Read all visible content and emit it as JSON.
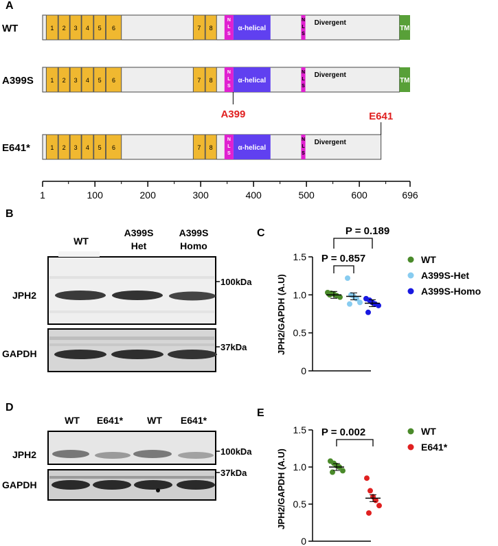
{
  "panel_a": {
    "letter": "A",
    "rows": [
      {
        "label": "WT",
        "length": 696,
        "has_tm": true,
        "annotation": ""
      },
      {
        "label": "A399S",
        "length": 696,
        "has_tm": true,
        "annotation": "A399",
        "annotation_pos": 399
      },
      {
        "label": "E641*",
        "length": 641,
        "has_tm": false,
        "annotation": "E641",
        "annotation_pos": 641
      }
    ],
    "domains": {
      "morn": [
        {
          "label": "1",
          "start": 8,
          "end": 30
        },
        {
          "label": "2",
          "start": 31,
          "end": 52
        },
        {
          "label": "3",
          "start": 53,
          "end": 74
        },
        {
          "label": "4",
          "start": 75,
          "end": 97
        },
        {
          "label": "5",
          "start": 98,
          "end": 120
        },
        {
          "label": "6",
          "start": 121,
          "end": 150
        },
        {
          "label": "7",
          "start": 286,
          "end": 308
        },
        {
          "label": "8",
          "start": 309,
          "end": 330
        }
      ],
      "nls1": {
        "label": "N\nL\nS",
        "start": 345,
        "end": 362
      },
      "alpha": {
        "label": "α-helical",
        "start": 362,
        "end": 432
      },
      "nls2": {
        "label": "N\nL\nS",
        "start": 490,
        "end": 498
      },
      "divergent": {
        "label": "Divergent"
      },
      "tm": {
        "label": "TM",
        "start": 676,
        "end": 696
      }
    },
    "axis": {
      "ticks": [
        1,
        100,
        200,
        300,
        400,
        500,
        600,
        696
      ],
      "min": 1,
      "max": 696
    },
    "colors": {
      "morn": "#f0b830",
      "nls": "#e020d0",
      "alpha": "#6040f0",
      "tm": "#58a038",
      "bar": "#eeeeee",
      "annot": "#e02020"
    }
  },
  "panel_b": {
    "letter": "B",
    "lanes": [
      "WT",
      "A399S\nHet",
      "A399S\nHomo"
    ],
    "bands": [
      {
        "name": "JPH2",
        "marker": "100kDa"
      },
      {
        "name": "GAPDH",
        "marker": "37kDa"
      }
    ]
  },
  "panel_c": {
    "letter": "C",
    "ylabel": "JPH2/GAPDH (A.U)",
    "comparisons": [
      {
        "text": "P = 0.189",
        "from": 0,
        "to": 2
      },
      {
        "text": "P = 0.857",
        "from": 0,
        "to": 1
      }
    ],
    "legend": [
      {
        "name": "WT",
        "color": "#4a8a2a"
      },
      {
        "name": "A399S-Het",
        "color": "#88ccf0"
      },
      {
        "name": "A399S-Homo",
        "color": "#1818e0"
      }
    ]
  },
  "panel_d": {
    "letter": "D",
    "lanes": [
      "WT",
      "E641*",
      "WT",
      "E641*"
    ],
    "bands": [
      {
        "name": "JPH2",
        "marker": "100kDa"
      },
      {
        "name": "GAPDH",
        "marker": "37kDa"
      }
    ]
  },
  "panel_e": {
    "letter": "E",
    "ylabel": "JPH2/GAPDH (A.U)",
    "comparisons": [
      {
        "text": "P = 0.002",
        "from": 0,
        "to": 1
      }
    ],
    "legend": [
      {
        "name": "WT",
        "color": "#4a8a2a"
      },
      {
        "name": "E641*",
        "color": "#e02020"
      }
    ]
  },
  "chart_data": [
    {
      "type": "scatter",
      "ylabel": "JPH2/GAPDH (A.U)",
      "ylim": [
        0,
        1.5
      ],
      "yticks": [
        "0",
        "0.5",
        "1.0",
        "1.5"
      ],
      "groups": [
        "WT",
        "A399S-Het",
        "A399S-Homo"
      ],
      "series": [
        {
          "name": "WT",
          "values": [
            1.03,
            1.02,
            1.01,
            0.99,
            0.97,
            1.0
          ],
          "mean": 1.0
        },
        {
          "name": "A399S-Het",
          "values": [
            1.22,
            1.0,
            0.98,
            0.95,
            0.9,
            0.88
          ],
          "mean": 0.98
        },
        {
          "name": "A399S-Homo",
          "values": [
            0.95,
            0.93,
            0.9,
            0.88,
            0.86,
            0.77
          ],
          "mean": 0.89
        }
      ]
    },
    {
      "type": "scatter",
      "ylabel": "JPH2/GAPDH (A.U)",
      "ylim": [
        0,
        1.5
      ],
      "yticks": [
        "0",
        "0.5",
        "1.0",
        "1.5"
      ],
      "groups": [
        "WT",
        "E641*"
      ],
      "series": [
        {
          "name": "WT",
          "values": [
            1.08,
            1.05,
            1.02,
            1.0,
            0.95,
            0.93
          ],
          "mean": 1.0
        },
        {
          "name": "E641*",
          "values": [
            0.85,
            0.68,
            0.6,
            0.55,
            0.48,
            0.38
          ],
          "mean": 0.58
        }
      ]
    }
  ]
}
